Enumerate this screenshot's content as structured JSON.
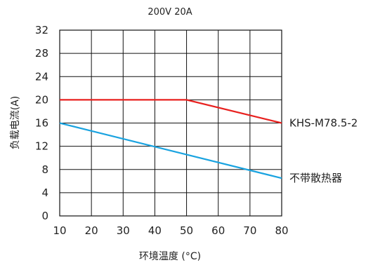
{
  "chart_data": {
    "type": "line",
    "title": "200V 20A",
    "xlabel": "环境温度 (°C)",
    "ylabel": "负载电流(A)",
    "xlim": [
      10,
      80
    ],
    "ylim": [
      0,
      32
    ],
    "xticks": [
      10,
      20,
      30,
      40,
      50,
      60,
      70,
      80
    ],
    "yticks": [
      0,
      4,
      8,
      12,
      16,
      20,
      24,
      28,
      32
    ],
    "grid": true,
    "series": [
      {
        "name": "KHS-M78.5-2",
        "color": "#e8211f",
        "points": [
          [
            10,
            20
          ],
          [
            50,
            20
          ],
          [
            80,
            16
          ]
        ]
      },
      {
        "name": "不带散热器",
        "color": "#1aa3e0",
        "points": [
          [
            10,
            16
          ],
          [
            80,
            6.5
          ]
        ]
      }
    ]
  }
}
